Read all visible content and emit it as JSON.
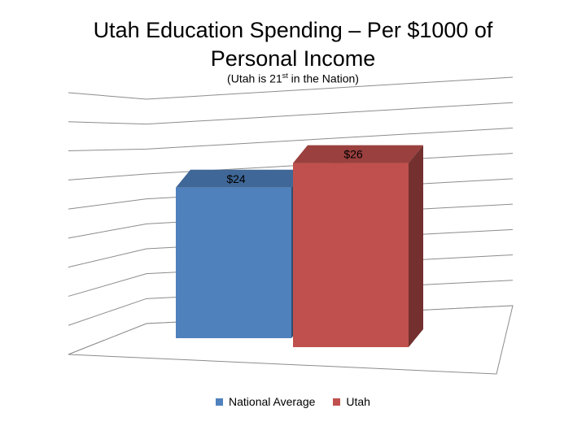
{
  "chart_data": {
    "type": "bar",
    "title": "Utah Education Spending – Per $1000 of Personal Income",
    "subtitle": {
      "prefix": "(Utah is 21",
      "superscript": "st",
      "suffix": " in the Nation)"
    },
    "categories": [
      "National Average",
      "Utah"
    ],
    "values": [
      24,
      26
    ],
    "data_labels": [
      "$24",
      "$26"
    ],
    "colors": [
      "#4f81bd",
      "#c0504d"
    ],
    "ylim": [
      15,
      27
    ],
    "gridlines": true,
    "legend_position": "bottom",
    "style": "3d-column"
  }
}
